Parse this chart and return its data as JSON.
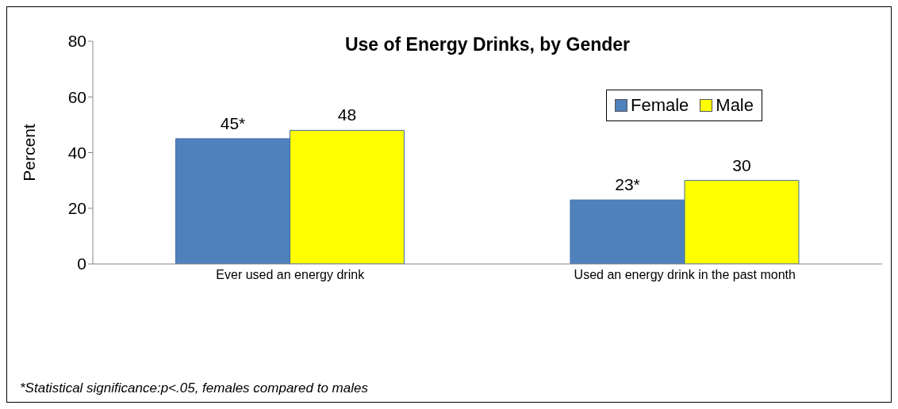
{
  "chart_data": {
    "type": "bar",
    "title": "Use of Energy Drinks, by Gender",
    "ylabel": "Percent",
    "categories": [
      "Ever used an energy drink",
      "Used an energy drink in the past  month"
    ],
    "series": [
      {
        "name": "Female",
        "color": "#4f81bd",
        "values": [
          45,
          23
        ],
        "value_labels": [
          "45*",
          "23*"
        ]
      },
      {
        "name": "Male",
        "color": "#ffff00",
        "values": [
          48,
          30
        ],
        "value_labels": [
          "48",
          "30"
        ]
      }
    ],
    "ylim": [
      0,
      80
    ],
    "yticks": [
      0,
      20,
      40,
      60,
      80
    ],
    "grid": false,
    "legend": "top right",
    "annotations": [
      "*Statistical significance:p<.05, females compared to males"
    ]
  }
}
